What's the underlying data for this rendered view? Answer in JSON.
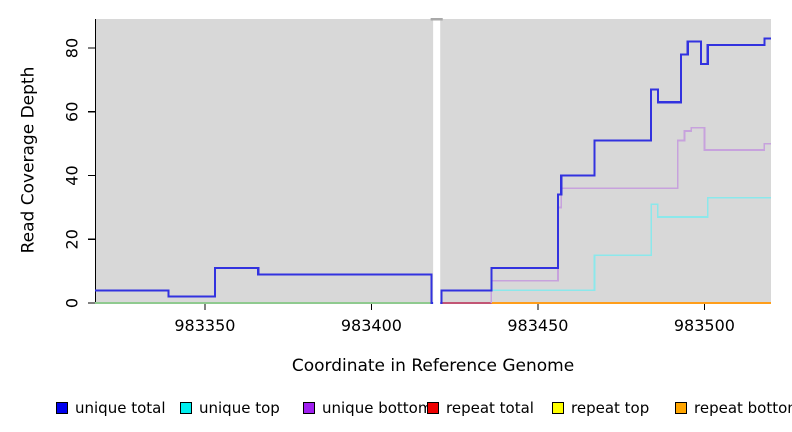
{
  "chart_data": {
    "type": "line",
    "line_style": "step",
    "title": "",
    "xlabel": "Coordinate in Reference Genome",
    "ylabel": "Read Coverage Depth",
    "xlim": [
      983317,
      983520
    ],
    "ylim": [
      0,
      89
    ],
    "xticks": [
      983350,
      983400,
      983450,
      983500
    ],
    "yticks": [
      0,
      20,
      40,
      60,
      80
    ],
    "grid": "off",
    "legend_position": "bottom",
    "plot_background": "#d8d8d8",
    "gap_region": {
      "from": 983418,
      "to": 983421
    },
    "series": [
      {
        "name": "unique total",
        "line_color": "#3232df",
        "legend_color": "#0000ee",
        "line_width": 2.1,
        "end_x": 983520,
        "steps": [
          [
            983317,
            4
          ],
          [
            983339,
            2
          ],
          [
            983353,
            11
          ],
          [
            983366,
            9
          ],
          [
            983418,
            0
          ],
          [
            983421,
            4
          ],
          [
            983436,
            11
          ],
          [
            983456,
            34
          ],
          [
            983457,
            40
          ],
          [
            983467,
            51
          ],
          [
            983484,
            67
          ],
          [
            983486,
            63
          ],
          [
            983493,
            78
          ],
          [
            983495,
            82
          ],
          [
            983499,
            75
          ],
          [
            983501,
            81
          ],
          [
            983518,
            83
          ]
        ]
      },
      {
        "name": "unique top",
        "line_color": "#8be8eb",
        "legend_color": "#00eeee",
        "line_width": 1.7,
        "end_x": 983520,
        "steps": [
          [
            983421,
            4
          ],
          [
            983467,
            15
          ],
          [
            983484,
            31
          ],
          [
            983486,
            27
          ],
          [
            983501,
            33
          ]
        ]
      },
      {
        "name": "unique bottom",
        "line_color": "#c7a2dd",
        "legend_color": "#a020f0",
        "line_width": 1.7,
        "end_x": 983520,
        "steps": [
          [
            983436,
            0
          ],
          [
            983436,
            7
          ],
          [
            983456,
            30
          ],
          [
            983457,
            36
          ],
          [
            983492,
            51
          ],
          [
            983494,
            54
          ],
          [
            983496,
            55
          ],
          [
            983500,
            48
          ],
          [
            983518,
            50
          ]
        ]
      },
      {
        "name": "repeat total",
        "line_color": "#c25575",
        "legend_color": "#ee0000",
        "line_width": 1.7,
        "end_x": 983436,
        "steps": [
          [
            983421,
            0
          ]
        ]
      },
      {
        "name": "repeat top",
        "line_color": "#8fca8f",
        "legend_color": "#ffff00",
        "line_width": 1.7,
        "end_x": 983418,
        "steps": [
          [
            983317,
            0
          ]
        ]
      },
      {
        "name": "repeat bottom",
        "line_color": "#ff9e1b",
        "legend_color": "#ffa500",
        "line_width": 1.8,
        "end_x": 983520,
        "steps": [
          [
            983436,
            0
          ]
        ]
      }
    ]
  }
}
